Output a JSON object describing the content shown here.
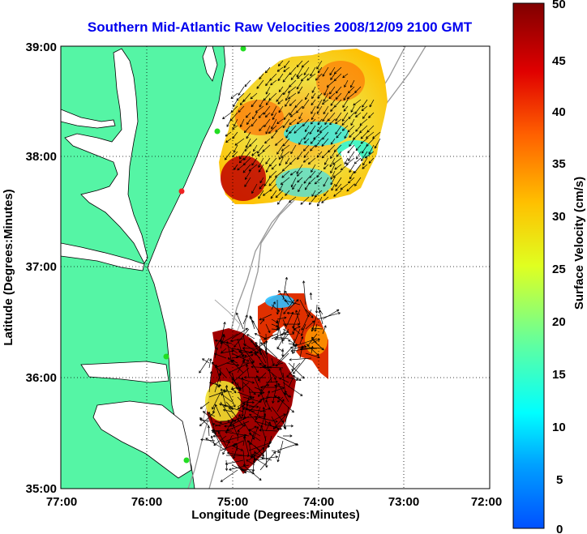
{
  "title": "Southern Mid-Atlantic Raw Velocities 2008/12/09 2100 GMT",
  "axes": {
    "xlabel": "Longitude (Degrees:Minutes)",
    "ylabel": "Latitude (Degrees:Minutes)",
    "x_ticks": [
      "77:00",
      "76:00",
      "75:00",
      "74:00",
      "73:00",
      "72:00"
    ],
    "y_ticks": [
      "39:00",
      "38:00",
      "37:00",
      "36:00",
      "35:00"
    ],
    "x_range": [
      -77,
      -72
    ],
    "y_range": [
      35,
      39
    ],
    "grid": "dotted"
  },
  "colorbar": {
    "label": "Surface Velocity (cm/s)",
    "ticks": [
      "50",
      "45",
      "40",
      "35",
      "30",
      "25",
      "20",
      "15",
      "10",
      "5",
      "0"
    ],
    "range": [
      0,
      50
    ],
    "colormap": "jet"
  },
  "colors": {
    "land": "#55f5a5",
    "coast_line": "#000000",
    "bathymetry": "#999999",
    "station_marker": "#22dd22",
    "station_marker_red": "#ee2222",
    "title": "#0000ee"
  }
}
